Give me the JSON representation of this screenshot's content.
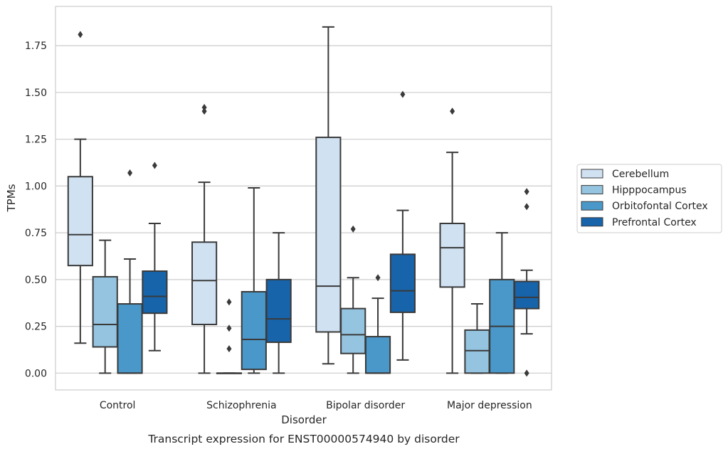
{
  "chart_data": {
    "type": "boxplot",
    "title": "",
    "caption": "Transcript expression for ENST00000574940 by disorder",
    "xlabel": "Disorder",
    "ylabel": "TPMs",
    "ylim": [
      -0.09,
      1.96
    ],
    "yticks": [
      0.0,
      0.25,
      0.5,
      0.75,
      1.0,
      1.25,
      1.5,
      1.75
    ],
    "ytick_labels": [
      "0.00",
      "0.25",
      "0.50",
      "0.75",
      "1.00",
      "1.25",
      "1.50",
      "1.75"
    ],
    "grid": "horizontal",
    "legend_position": "right",
    "categories": [
      "Control",
      "Schizophrenia",
      "Bipolar disorder",
      "Major depression"
    ],
    "series": [
      {
        "name": "Cerebellum",
        "color": "#d0e1f2",
        "boxes": [
          {
            "whislo": 0.16,
            "q1": 0.575,
            "med": 0.74,
            "q3": 1.05,
            "whishi": 1.25,
            "fliers": [
              1.81
            ]
          },
          {
            "whislo": 0.0,
            "q1": 0.26,
            "med": 0.495,
            "q3": 0.7,
            "whishi": 1.02,
            "fliers": [
              1.4,
              1.42
            ]
          },
          {
            "whislo": 0.05,
            "q1": 0.22,
            "med": 0.465,
            "q3": 1.26,
            "whishi": 1.85,
            "fliers": []
          },
          {
            "whislo": 0.0,
            "q1": 0.46,
            "med": 0.67,
            "q3": 0.8,
            "whishi": 1.18,
            "fliers": [
              1.4
            ]
          }
        ]
      },
      {
        "name": "Hipppocampus",
        "color": "#94c4df",
        "boxes": [
          {
            "whislo": 0.0,
            "q1": 0.14,
            "med": 0.26,
            "q3": 0.515,
            "whishi": 0.71,
            "fliers": []
          },
          {
            "whislo": 0.0,
            "q1": 0.0,
            "med": 0.0,
            "q3": 0.0,
            "whishi": 0.0,
            "fliers": [
              0.13,
              0.24,
              0.38
            ]
          },
          {
            "whislo": 0.0,
            "q1": 0.105,
            "med": 0.205,
            "q3": 0.345,
            "whishi": 0.51,
            "fliers": [
              0.77
            ]
          },
          {
            "whislo": 0.0,
            "q1": 0.0,
            "med": 0.12,
            "q3": 0.23,
            "whishi": 0.37,
            "fliers": []
          }
        ]
      },
      {
        "name": "Orbitofontal Cortex",
        "color": "#4a98c9",
        "boxes": [
          {
            "whislo": 0.0,
            "q1": 0.0,
            "med": 0.0,
            "q3": 0.37,
            "whishi": 0.61,
            "fliers": [
              1.07
            ]
          },
          {
            "whislo": 0.0,
            "q1": 0.02,
            "med": 0.18,
            "q3": 0.435,
            "whishi": 0.99,
            "fliers": []
          },
          {
            "whislo": 0.0,
            "q1": 0.0,
            "med": 0.0,
            "q3": 0.195,
            "whishi": 0.4,
            "fliers": [
              0.51
            ]
          },
          {
            "whislo": 0.0,
            "q1": 0.0,
            "med": 0.25,
            "q3": 0.5,
            "whishi": 0.75,
            "fliers": []
          }
        ]
      },
      {
        "name": "Prefrontal Cortex",
        "color": "#1764ab",
        "boxes": [
          {
            "whislo": 0.12,
            "q1": 0.32,
            "med": 0.41,
            "q3": 0.545,
            "whishi": 0.8,
            "fliers": [
              1.11
            ]
          },
          {
            "whislo": 0.0,
            "q1": 0.165,
            "med": 0.29,
            "q3": 0.5,
            "whishi": 0.75,
            "fliers": []
          },
          {
            "whislo": 0.07,
            "q1": 0.325,
            "med": 0.44,
            "q3": 0.635,
            "whishi": 0.87,
            "fliers": [
              1.49
            ]
          },
          {
            "whislo": 0.21,
            "q1": 0.345,
            "med": 0.405,
            "q3": 0.49,
            "whishi": 0.55,
            "fliers": [
              0.0,
              0.89,
              0.97
            ]
          }
        ]
      }
    ]
  }
}
